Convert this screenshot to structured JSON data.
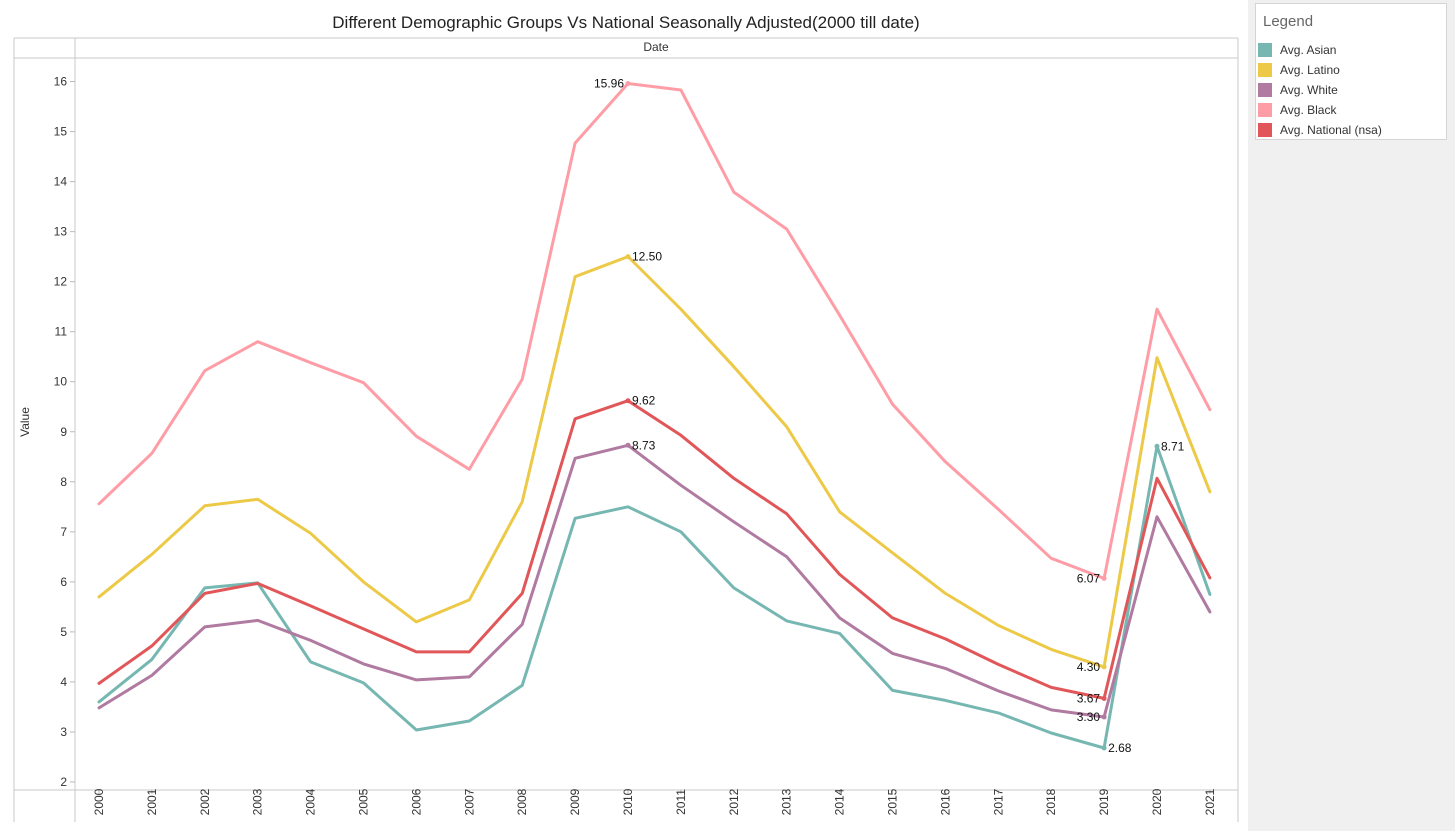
{
  "chart_data": {
    "type": "line",
    "title": "Different Demographic Groups Vs National Seasonally Adjusted(2000 till date)",
    "header": "Date",
    "ylabel": "Value",
    "ylim": [
      1.85,
      16.7
    ],
    "yticks": [
      2,
      3,
      4,
      5,
      6,
      7,
      8,
      9,
      10,
      11,
      12,
      13,
      14,
      15,
      16
    ],
    "x": [
      "2000",
      "2001",
      "2002",
      "2003",
      "2004",
      "2005",
      "2006",
      "2007",
      "2008",
      "2009",
      "2010",
      "2011",
      "2012",
      "2013",
      "2014",
      "2015",
      "2016",
      "2017",
      "2018",
      "2019",
      "2020",
      "2021"
    ],
    "legend_title": "Legend",
    "legend_position": "top-right",
    "series": [
      {
        "name": "Avg. Asian",
        "color": "#76b7b2",
        "values": [
          3.6,
          4.45,
          5.88,
          5.98,
          4.4,
          3.98,
          3.04,
          3.22,
          3.93,
          7.27,
          7.5,
          7.0,
          5.88,
          5.22,
          4.97,
          3.83,
          3.63,
          3.38,
          2.98,
          2.68,
          8.71,
          5.75
        ]
      },
      {
        "name": "Avg. Latino",
        "color": "#edc948",
        "values": [
          5.7,
          6.55,
          7.52,
          7.65,
          6.97,
          6.0,
          5.2,
          5.64,
          7.6,
          12.1,
          12.5,
          11.45,
          10.3,
          9.1,
          7.4,
          6.58,
          5.77,
          5.13,
          4.65,
          4.3,
          10.48,
          7.8
        ]
      },
      {
        "name": "Avg. White",
        "color": "#b07aa1",
        "values": [
          3.48,
          4.13,
          5.1,
          5.23,
          4.83,
          4.36,
          4.04,
          4.1,
          5.15,
          8.47,
          8.73,
          7.93,
          7.2,
          6.5,
          5.28,
          4.57,
          4.27,
          3.82,
          3.44,
          3.3,
          7.3,
          5.4
        ]
      },
      {
        "name": "Avg. Black",
        "color": "#ff9da7",
        "values": [
          7.56,
          8.57,
          10.22,
          10.8,
          10.38,
          9.98,
          8.91,
          8.25,
          10.05,
          14.77,
          15.96,
          15.83,
          13.79,
          13.05,
          11.33,
          9.55,
          8.4,
          7.45,
          6.47,
          6.07,
          11.45,
          9.44
        ]
      },
      {
        "name": "Avg. National (nsa)",
        "color": "#e15759",
        "values": [
          3.97,
          4.72,
          5.77,
          5.97,
          5.52,
          5.06,
          4.6,
          4.6,
          5.77,
          9.26,
          9.62,
          8.93,
          8.07,
          7.36,
          6.15,
          5.28,
          4.86,
          4.35,
          3.89,
          3.67,
          8.07,
          6.08
        ]
      }
    ],
    "annotations": [
      {
        "series": 3,
        "index": 10,
        "label": "15.96",
        "side": "left"
      },
      {
        "series": 1,
        "index": 10,
        "label": "12.50",
        "side": "right"
      },
      {
        "series": 4,
        "index": 10,
        "label": "9.62",
        "side": "right"
      },
      {
        "series": 2,
        "index": 10,
        "label": "8.73",
        "side": "right"
      },
      {
        "series": 3,
        "index": 19,
        "label": "6.07",
        "side": "left"
      },
      {
        "series": 1,
        "index": 19,
        "label": "4.30",
        "side": "left"
      },
      {
        "series": 4,
        "index": 19,
        "label": "3.67",
        "side": "left"
      },
      {
        "series": 2,
        "index": 19,
        "label": "3.30",
        "side": "left"
      },
      {
        "series": 0,
        "index": 19,
        "label": "2.68",
        "side": "right"
      },
      {
        "series": 0,
        "index": 20,
        "label": "8.71",
        "side": "right"
      }
    ]
  }
}
